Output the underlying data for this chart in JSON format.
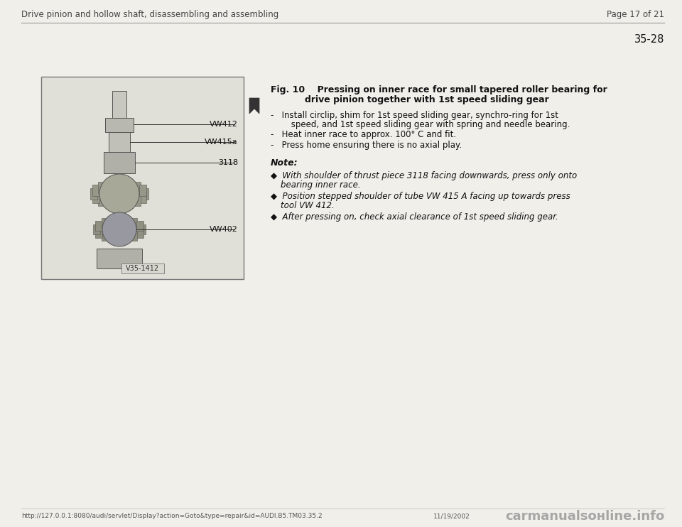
{
  "page_bg": "#f0efea",
  "header_left": "Drive pinion and hollow shaft, disassembling and assembling",
  "header_right": "Page 17 of 21",
  "section_number": "35-28",
  "fig_line1": "Fig. 10    Pressing on inner race for small tapered roller bearing for",
  "fig_line2": "drive pinion together with 1st speed sliding gear",
  "dash_items": [
    [
      "-   Install circlip, shim for 1st speed sliding gear, synchro-ring for 1st",
      "     speed, and 1st speed sliding gear with spring and needle bearing."
    ],
    [
      "-   Heat inner race to approx. 100° C and fit."
    ],
    [
      "-   Press home ensuring there is no axial play."
    ]
  ],
  "note_label": "Note:",
  "note_bullets": [
    [
      "With shoulder of thrust piece 3118 facing downwards, press only onto",
      "bearing inner race."
    ],
    [
      "Position stepped shoulder of tube VW 415 A facing up towards press",
      "tool VW 412."
    ],
    [
      "After pressing on, check axial clearance of 1st speed sliding gear."
    ]
  ],
  "img_labels": [
    "VW412",
    "VW415a",
    "3118",
    "VW402"
  ],
  "img_ref": "V35-1412",
  "footer_left": "http://127.0.0.1:8080/audi/servlet/Display?action=Goto&type=repair&id=AUDI.B5.TM03.35.2",
  "footer_mid": "11/19/2002",
  "footer_logo": "carmanualsонline.info"
}
